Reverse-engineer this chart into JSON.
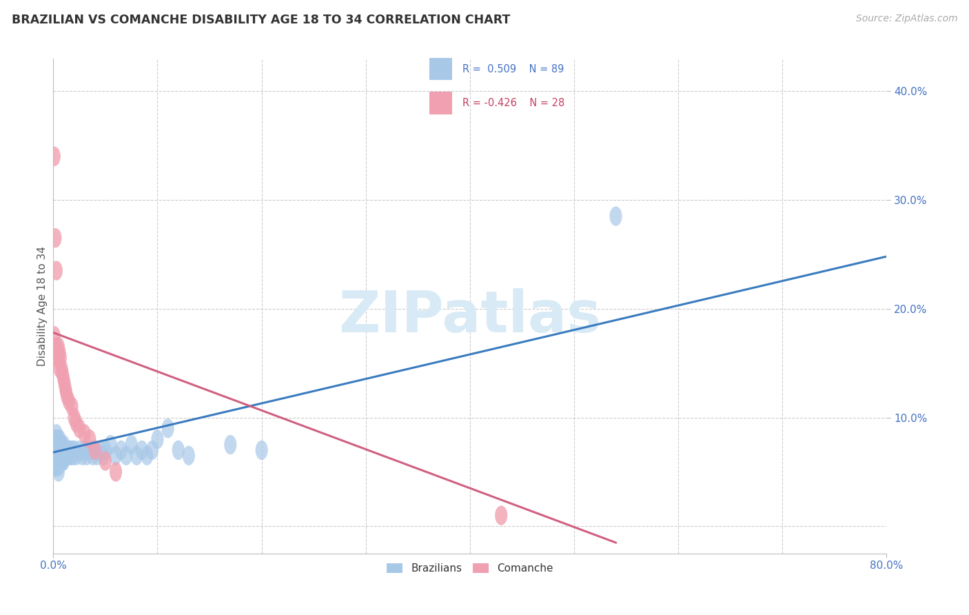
{
  "title": "BRAZILIAN VS COMANCHE DISABILITY AGE 18 TO 34 CORRELATION CHART",
  "source_text": "Source: ZipAtlas.com",
  "ylabel_text": "Disability Age 18 to 34",
  "xlim": [
    0.0,
    0.8
  ],
  "ylim": [
    -0.025,
    0.43
  ],
  "xticks": [
    0.0,
    0.8
  ],
  "yticks": [
    0.1,
    0.2,
    0.3,
    0.4
  ],
  "xtick_labels": [
    "0.0%",
    "80.0%"
  ],
  "ytick_labels": [
    "10.0%",
    "20.0%",
    "30.0%",
    "40.0%"
  ],
  "grid_xticks": [
    0.0,
    0.1,
    0.2,
    0.3,
    0.4,
    0.5,
    0.6,
    0.7,
    0.8
  ],
  "grid_yticks": [
    0.0,
    0.1,
    0.2,
    0.3,
    0.4
  ],
  "background_color": "#ffffff",
  "grid_color": "#cccccc",
  "watermark_color": "#d8eaf5",
  "blue_scatter_color": "#a8c8e8",
  "pink_scatter_color": "#f0a0b0",
  "blue_line_color": "#3a7bbf",
  "pink_line_color": "#d06080",
  "legend_blue_color": "#4472c4",
  "legend_pink_color": "#c44060",
  "blue_scatter_x": [
    0.001,
    0.001,
    0.001,
    0.001,
    0.001,
    0.002,
    0.002,
    0.002,
    0.002,
    0.003,
    0.003,
    0.003,
    0.003,
    0.003,
    0.003,
    0.004,
    0.004,
    0.004,
    0.004,
    0.005,
    0.005,
    0.005,
    0.005,
    0.005,
    0.005,
    0.005,
    0.006,
    0.006,
    0.006,
    0.006,
    0.006,
    0.007,
    0.007,
    0.007,
    0.007,
    0.008,
    0.008,
    0.008,
    0.008,
    0.009,
    0.009,
    0.009,
    0.01,
    0.01,
    0.01,
    0.011,
    0.011,
    0.012,
    0.012,
    0.013,
    0.013,
    0.014,
    0.015,
    0.016,
    0.017,
    0.018,
    0.019,
    0.02,
    0.022,
    0.025,
    0.028,
    0.03,
    0.032,
    0.035,
    0.038,
    0.04,
    0.042,
    0.045,
    0.048,
    0.05,
    0.055,
    0.06,
    0.065,
    0.07,
    0.075,
    0.08,
    0.085,
    0.09,
    0.095,
    0.1,
    0.11,
    0.12,
    0.13,
    0.17,
    0.2,
    0.001,
    0.002,
    0.003,
    0.54
  ],
  "blue_scatter_y": [
    0.07,
    0.075,
    0.08,
    0.065,
    0.06,
    0.07,
    0.075,
    0.065,
    0.06,
    0.075,
    0.08,
    0.07,
    0.065,
    0.06,
    0.085,
    0.07,
    0.075,
    0.065,
    0.06,
    0.075,
    0.07,
    0.08,
    0.065,
    0.06,
    0.055,
    0.05,
    0.07,
    0.075,
    0.065,
    0.06,
    0.08,
    0.07,
    0.075,
    0.065,
    0.06,
    0.07,
    0.075,
    0.065,
    0.06,
    0.07,
    0.065,
    0.06,
    0.075,
    0.065,
    0.06,
    0.07,
    0.065,
    0.07,
    0.065,
    0.07,
    0.065,
    0.07,
    0.065,
    0.07,
    0.065,
    0.07,
    0.065,
    0.07,
    0.065,
    0.07,
    0.065,
    0.07,
    0.065,
    0.07,
    0.065,
    0.07,
    0.065,
    0.07,
    0.065,
    0.07,
    0.075,
    0.065,
    0.07,
    0.065,
    0.075,
    0.065,
    0.07,
    0.065,
    0.07,
    0.08,
    0.09,
    0.07,
    0.065,
    0.075,
    0.07,
    0.055,
    0.055,
    0.055,
    0.285
  ],
  "pink_scatter_x": [
    0.001,
    0.001,
    0.002,
    0.003,
    0.003,
    0.004,
    0.005,
    0.005,
    0.006,
    0.006,
    0.007,
    0.008,
    0.009,
    0.01,
    0.011,
    0.012,
    0.013,
    0.015,
    0.018,
    0.02,
    0.022,
    0.025,
    0.03,
    0.035,
    0.04,
    0.05,
    0.06,
    0.43
  ],
  "pink_scatter_y": [
    0.34,
    0.175,
    0.265,
    0.235,
    0.165,
    0.155,
    0.155,
    0.165,
    0.145,
    0.16,
    0.155,
    0.145,
    0.14,
    0.135,
    0.13,
    0.125,
    0.12,
    0.115,
    0.11,
    0.1,
    0.095,
    0.09,
    0.085,
    0.08,
    0.07,
    0.06,
    0.05,
    0.01
  ],
  "blue_line_x": [
    0.0,
    0.8
  ],
  "blue_line_y": [
    0.068,
    0.248
  ],
  "pink_line_x": [
    0.0,
    0.54
  ],
  "pink_line_y": [
    0.178,
    -0.015
  ]
}
